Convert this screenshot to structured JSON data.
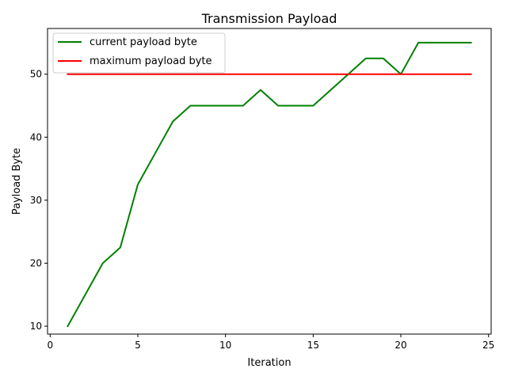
{
  "chart_data": {
    "type": "line",
    "title": "Transmission Payload",
    "xlabel": "Iteration",
    "ylabel": "Payload Byte",
    "xlim": [
      -0.15,
      25.15
    ],
    "ylim": [
      8.75,
      57.25
    ],
    "xticks": [
      0,
      5,
      10,
      15,
      20,
      25
    ],
    "yticks": [
      10,
      20,
      30,
      40,
      50
    ],
    "grid": false,
    "legend_position": "top-left",
    "series": [
      {
        "name": "current payload byte",
        "color": "#008000",
        "x": [
          1,
          2,
          3,
          4,
          5,
          6,
          7,
          8,
          9,
          10,
          11,
          12,
          13,
          14,
          15,
          16,
          17,
          18,
          19,
          20,
          21,
          22,
          23,
          24
        ],
        "y": [
          10,
          15,
          20,
          22.5,
          32.5,
          37.5,
          42.5,
          45,
          45,
          45,
          45,
          47.5,
          45,
          45,
          45,
          47.5,
          50,
          52.5,
          52.5,
          50,
          55,
          55,
          55,
          55
        ]
      },
      {
        "name": "maximum payload byte",
        "color": "#ff0000",
        "x": [
          1,
          24
        ],
        "y": [
          50,
          50
        ]
      }
    ]
  }
}
